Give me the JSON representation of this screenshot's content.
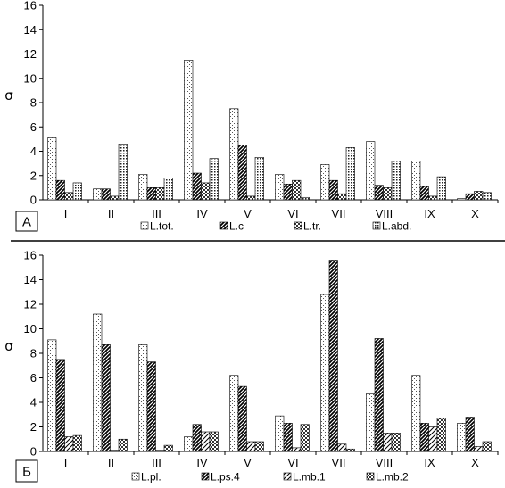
{
  "chart_data": [
    {
      "type": "bar",
      "panel_label": "А",
      "ylabel": "σ",
      "ylim": [
        0,
        16
      ],
      "yticks": [
        "0",
        "2",
        "4",
        "6",
        "8",
        "10",
        "12",
        "14",
        "16"
      ],
      "categories": [
        "I",
        "II",
        "III",
        "IV",
        "V",
        "VI",
        "VII",
        "VIII",
        "IX",
        "X"
      ],
      "legend_position": "bottom",
      "grid": false,
      "series": [
        {
          "name": "L.tot.",
          "pattern": "dots-sparse",
          "values": [
            5.1,
            0.9,
            2.1,
            11.5,
            7.5,
            2.1,
            2.9,
            4.8,
            3.2,
            0.1
          ]
        },
        {
          "name": "L.c",
          "pattern": "diag-dense",
          "values": [
            1.6,
            0.9,
            1.0,
            2.2,
            4.5,
            1.3,
            1.6,
            1.2,
            1.1,
            0.5
          ]
        },
        {
          "name": "L.tr.",
          "pattern": "checker",
          "values": [
            0.6,
            0.3,
            1.0,
            1.4,
            0.3,
            1.6,
            0.5,
            1.0,
            0.3,
            0.7
          ]
        },
        {
          "name": "L.abd.",
          "pattern": "dots-dense",
          "values": [
            1.4,
            4.6,
            1.8,
            3.4,
            3.5,
            0.2,
            4.3,
            3.2,
            1.9,
            0.6
          ]
        }
      ]
    },
    {
      "type": "bar",
      "panel_label": "Б",
      "ylabel": "σ",
      "ylim": [
        0,
        16
      ],
      "yticks": [
        "0",
        "2",
        "4",
        "6",
        "8",
        "10",
        "12",
        "14",
        "16"
      ],
      "categories": [
        "I",
        "II",
        "III",
        "IV",
        "V",
        "VI",
        "VII",
        "VIII",
        "IX",
        "X"
      ],
      "legend_position": "bottom",
      "grid": false,
      "series": [
        {
          "name": "L.pl.",
          "pattern": "dots-sparse",
          "values": [
            9.1,
            11.2,
            8.7,
            1.2,
            6.2,
            2.9,
            12.8,
            4.7,
            6.2,
            2.3
          ]
        },
        {
          "name": "L.ps.4",
          "pattern": "diag-dense",
          "values": [
            7.5,
            8.7,
            7.3,
            2.2,
            5.3,
            2.3,
            15.6,
            9.2,
            2.3,
            2.8
          ]
        },
        {
          "name": "L.mb.1",
          "pattern": "diag-sparse",
          "values": [
            1.2,
            0.1,
            0.1,
            1.6,
            0.8,
            0.3,
            0.6,
            1.5,
            2.0,
            0.4
          ]
        },
        {
          "name": "L.mb.2",
          "pattern": "checker",
          "values": [
            1.3,
            1.0,
            0.5,
            1.6,
            0.8,
            2.2,
            0.2,
            1.5,
            2.7,
            0.8
          ]
        }
      ]
    }
  ]
}
